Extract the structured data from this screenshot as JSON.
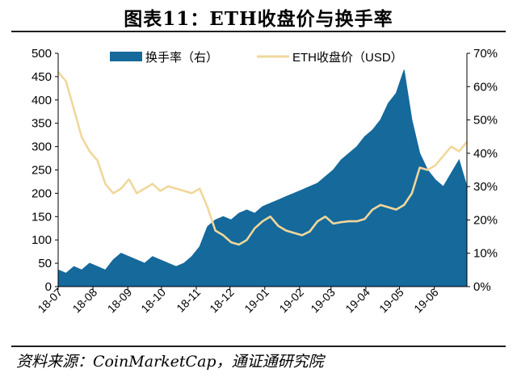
{
  "page": {
    "title": "图表11：ETH收盘价与换手率",
    "source": "资料来源：CoinMarketCap，通证通研究院"
  },
  "colors": {
    "turnover": "#15699b",
    "price": "#f0d79b",
    "axis": "#000000"
  },
  "chart_data": {
    "type": "area",
    "combo": "area (right axis) + line (left axis)",
    "legend_position": "top",
    "grid": false,
    "x_ticks": [
      "18-07",
      "18-08",
      "18-09",
      "18-10",
      "18-11",
      "18-12",
      "19-01",
      "19-02",
      "19-03",
      "19-04",
      "19-05",
      "19-06"
    ],
    "x_range": [
      "2018-07-01",
      "2019-06-30"
    ],
    "y_left": {
      "ticks": [
        "0",
        "50",
        "100",
        "150",
        "200",
        "250",
        "300",
        "350",
        "400",
        "450",
        "500"
      ],
      "ylim": [
        0,
        500
      ]
    },
    "y_right": {
      "ticks": [
        "0%",
        "10%",
        "20%",
        "30%",
        "40%",
        "50%",
        "60%",
        "70%"
      ],
      "ylim": [
        0,
        70
      ]
    },
    "series": [
      {
        "name": "换手率（右）",
        "kind": "area",
        "axis": "right",
        "unit": "%",
        "x": [
          "2018-07-01",
          "2018-07-08",
          "2018-07-15",
          "2018-07-22",
          "2018-07-29",
          "2018-08-05",
          "2018-08-12",
          "2018-08-19",
          "2018-08-26",
          "2018-09-02",
          "2018-09-09",
          "2018-09-16",
          "2018-09-23",
          "2018-09-30",
          "2018-10-07",
          "2018-10-14",
          "2018-10-21",
          "2018-10-28",
          "2018-11-04",
          "2018-11-11",
          "2018-11-18",
          "2018-11-25",
          "2018-12-02",
          "2018-12-09",
          "2018-12-16",
          "2018-12-23",
          "2018-12-30",
          "2019-01-06",
          "2019-01-13",
          "2019-01-20",
          "2019-01-27",
          "2019-02-03",
          "2019-02-10",
          "2019-02-17",
          "2019-02-24",
          "2019-03-03",
          "2019-03-10",
          "2019-03-17",
          "2019-03-24",
          "2019-03-31",
          "2019-04-07",
          "2019-04-14",
          "2019-04-21",
          "2019-04-28",
          "2019-05-05",
          "2019-05-12",
          "2019-05-19",
          "2019-05-26",
          "2019-06-02",
          "2019-06-09",
          "2019-06-16",
          "2019-06-23",
          "2019-06-30"
        ],
        "values": [
          5,
          4,
          6,
          5,
          7,
          6,
          5,
          8,
          10,
          9,
          8,
          7,
          9,
          8,
          7,
          6,
          7,
          9,
          12,
          18,
          20,
          21,
          20,
          22,
          23,
          22,
          24,
          25,
          26,
          27,
          28,
          29,
          30,
          31,
          33,
          35,
          38,
          40,
          42,
          45,
          47,
          50,
          55,
          58,
          65,
          50,
          40,
          35,
          32,
          30,
          34,
          38,
          30
        ]
      },
      {
        "name": "ETH收盘价（USD）",
        "kind": "line",
        "axis": "left",
        "unit": "USD",
        "x": [
          "2018-07-01",
          "2018-07-08",
          "2018-07-15",
          "2018-07-22",
          "2018-07-29",
          "2018-08-05",
          "2018-08-12",
          "2018-08-19",
          "2018-08-26",
          "2018-09-02",
          "2018-09-09",
          "2018-09-16",
          "2018-09-23",
          "2018-09-30",
          "2018-10-07",
          "2018-10-14",
          "2018-10-21",
          "2018-10-28",
          "2018-11-04",
          "2018-11-11",
          "2018-11-18",
          "2018-11-25",
          "2018-12-02",
          "2018-12-09",
          "2018-12-16",
          "2018-12-23",
          "2018-12-30",
          "2019-01-06",
          "2019-01-13",
          "2019-01-20",
          "2019-01-27",
          "2019-02-03",
          "2019-02-10",
          "2019-02-17",
          "2019-02-24",
          "2019-03-03",
          "2019-03-10",
          "2019-03-17",
          "2019-03-24",
          "2019-03-31",
          "2019-04-07",
          "2019-04-14",
          "2019-04-21",
          "2019-04-28",
          "2019-05-05",
          "2019-05-12",
          "2019-05-19",
          "2019-05-26",
          "2019-06-02",
          "2019-06-09",
          "2019-06-16",
          "2019-06-23",
          "2019-06-30"
        ],
        "values": [
          460,
          440,
          380,
          320,
          290,
          270,
          220,
          200,
          210,
          230,
          200,
          210,
          220,
          205,
          215,
          210,
          205,
          200,
          210,
          170,
          120,
          110,
          95,
          90,
          100,
          125,
          140,
          150,
          130,
          120,
          115,
          110,
          118,
          140,
          150,
          135,
          138,
          140,
          140,
          145,
          165,
          175,
          170,
          165,
          175,
          200,
          255,
          250,
          260,
          280,
          300,
          290,
          310
        ]
      }
    ]
  }
}
